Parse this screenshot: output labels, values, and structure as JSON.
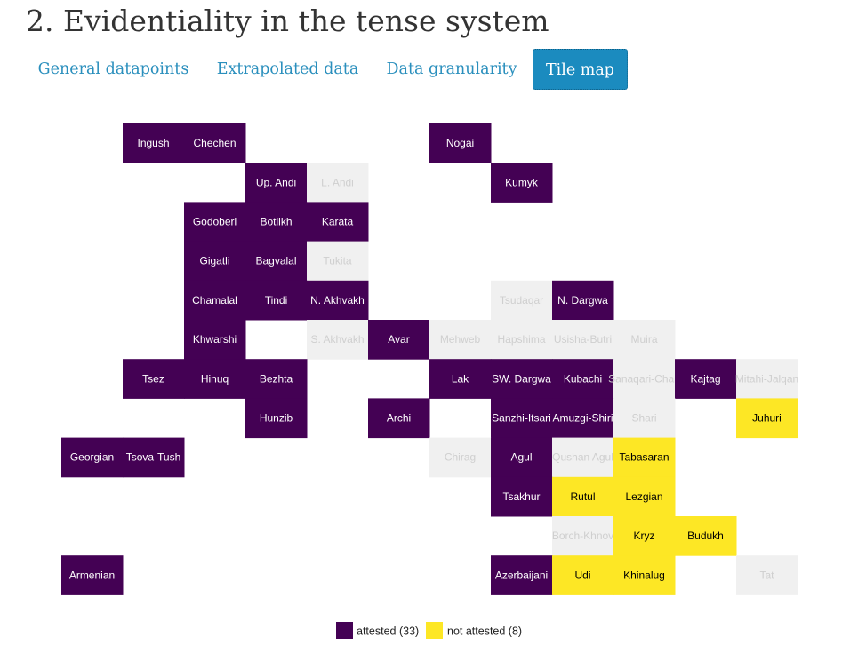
{
  "page": {
    "title": "2. Evidentiality in the tense system"
  },
  "tabs": [
    {
      "label": "General datapoints",
      "active": false
    },
    {
      "label": "Extrapolated data",
      "active": false
    },
    {
      "label": "Data granularity",
      "active": false
    },
    {
      "label": "Tile map",
      "active": true
    }
  ],
  "colors": {
    "attested": "#440154",
    "not_attested": "#fde725",
    "no_data": "#f0f0f0",
    "text_on_attested": "#ffffff",
    "text_on_not_attested": "#000000",
    "text_on_no_data": "#cfcfcf",
    "tab_accent": "#1b8bbf"
  },
  "chart_data": {
    "type": "heatmap",
    "grid_columns": 12,
    "grid_rows": 12,
    "legend": [
      {
        "value": "attested",
        "label": "attested (33)"
      },
      {
        "value": "not_attested",
        "label": "not attested (8)"
      }
    ],
    "legend_placement": "bottom",
    "tiles": [
      {
        "name": "Ingush",
        "col": 2,
        "row": 1,
        "value": "attested"
      },
      {
        "name": "Chechen",
        "col": 3,
        "row": 1,
        "value": "attested"
      },
      {
        "name": "Nogai",
        "col": 7,
        "row": 1,
        "value": "attested"
      },
      {
        "name": "Up. Andi",
        "col": 4,
        "row": 2,
        "value": "attested"
      },
      {
        "name": "L. Andi",
        "col": 5,
        "row": 2,
        "value": "no_data"
      },
      {
        "name": "Kumyk",
        "col": 8,
        "row": 2,
        "value": "attested"
      },
      {
        "name": "Godoberi",
        "col": 3,
        "row": 3,
        "value": "attested"
      },
      {
        "name": "Botlikh",
        "col": 4,
        "row": 3,
        "value": "attested"
      },
      {
        "name": "Karata",
        "col": 5,
        "row": 3,
        "value": "attested"
      },
      {
        "name": "Gigatli",
        "col": 3,
        "row": 4,
        "value": "attested"
      },
      {
        "name": "Bagvalal",
        "col": 4,
        "row": 4,
        "value": "attested"
      },
      {
        "name": "Tukita",
        "col": 5,
        "row": 4,
        "value": "no_data"
      },
      {
        "name": "Chamalal",
        "col": 3,
        "row": 5,
        "value": "attested"
      },
      {
        "name": "Tindi",
        "col": 4,
        "row": 5,
        "value": "attested"
      },
      {
        "name": "N. Akhvakh",
        "col": 5,
        "row": 5,
        "value": "attested"
      },
      {
        "name": "Tsudaqar",
        "col": 8,
        "row": 5,
        "value": "no_data"
      },
      {
        "name": "N. Dargwa",
        "col": 9,
        "row": 5,
        "value": "attested"
      },
      {
        "name": "Khwarshi",
        "col": 3,
        "row": 6,
        "value": "attested"
      },
      {
        "name": "S. Akhvakh",
        "col": 5,
        "row": 6,
        "value": "no_data"
      },
      {
        "name": "Avar",
        "col": 6,
        "row": 6,
        "value": "attested"
      },
      {
        "name": "Mehweb",
        "col": 7,
        "row": 6,
        "value": "no_data"
      },
      {
        "name": "Hapshima",
        "col": 8,
        "row": 6,
        "value": "no_data"
      },
      {
        "name": "Usisha-Butri",
        "col": 9,
        "row": 6,
        "value": "no_data"
      },
      {
        "name": "Muira",
        "col": 10,
        "row": 6,
        "value": "no_data"
      },
      {
        "name": "Tsez",
        "col": 2,
        "row": 7,
        "value": "attested"
      },
      {
        "name": "Hinuq",
        "col": 3,
        "row": 7,
        "value": "attested"
      },
      {
        "name": "Bezhta",
        "col": 4,
        "row": 7,
        "value": "attested"
      },
      {
        "name": "Lak",
        "col": 7,
        "row": 7,
        "value": "attested"
      },
      {
        "name": "SW. Dargwa",
        "col": 8,
        "row": 7,
        "value": "attested"
      },
      {
        "name": "Kubachi",
        "col": 9,
        "row": 7,
        "value": "attested"
      },
      {
        "name": "Sanaqari-Chan",
        "col": 10,
        "row": 7,
        "value": "no_data"
      },
      {
        "name": "Kajtag",
        "col": 11,
        "row": 7,
        "value": "attested"
      },
      {
        "name": "Mitahi-Jalqan",
        "col": 12,
        "row": 7,
        "value": "no_data"
      },
      {
        "name": "Hunzib",
        "col": 4,
        "row": 8,
        "value": "attested"
      },
      {
        "name": "Archi",
        "col": 6,
        "row": 8,
        "value": "attested"
      },
      {
        "name": "Sanzhi-Itsari",
        "col": 8,
        "row": 8,
        "value": "attested"
      },
      {
        "name": "Amuzgi-Shiri",
        "col": 9,
        "row": 8,
        "value": "attested"
      },
      {
        "name": "Shari",
        "col": 10,
        "row": 8,
        "value": "no_data"
      },
      {
        "name": "Juhuri",
        "col": 12,
        "row": 8,
        "value": "not_attested"
      },
      {
        "name": "Georgian",
        "col": 1,
        "row": 9,
        "value": "attested"
      },
      {
        "name": "Tsova-Tush",
        "col": 2,
        "row": 9,
        "value": "attested"
      },
      {
        "name": "Chirag",
        "col": 7,
        "row": 9,
        "value": "no_data"
      },
      {
        "name": "Agul",
        "col": 8,
        "row": 9,
        "value": "attested"
      },
      {
        "name": "Qushan Agul",
        "col": 9,
        "row": 9,
        "value": "no_data"
      },
      {
        "name": "Tabasaran",
        "col": 10,
        "row": 9,
        "value": "not_attested"
      },
      {
        "name": "Tsakhur",
        "col": 8,
        "row": 10,
        "value": "attested"
      },
      {
        "name": "Rutul",
        "col": 9,
        "row": 10,
        "value": "not_attested"
      },
      {
        "name": "Lezgian",
        "col": 10,
        "row": 10,
        "value": "not_attested"
      },
      {
        "name": "Borch-Khnov",
        "col": 9,
        "row": 11,
        "value": "no_data"
      },
      {
        "name": "Kryz",
        "col": 10,
        "row": 11,
        "value": "not_attested"
      },
      {
        "name": "Budukh",
        "col": 11,
        "row": 11,
        "value": "not_attested"
      },
      {
        "name": "Armenian",
        "col": 1,
        "row": 12,
        "value": "attested"
      },
      {
        "name": "Azerbaijani",
        "col": 8,
        "row": 12,
        "value": "attested"
      },
      {
        "name": "Udi",
        "col": 9,
        "row": 12,
        "value": "not_attested"
      },
      {
        "name": "Khinalug",
        "col": 10,
        "row": 12,
        "value": "not_attested"
      },
      {
        "name": "Tat",
        "col": 12,
        "row": 12,
        "value": "no_data"
      }
    ]
  }
}
